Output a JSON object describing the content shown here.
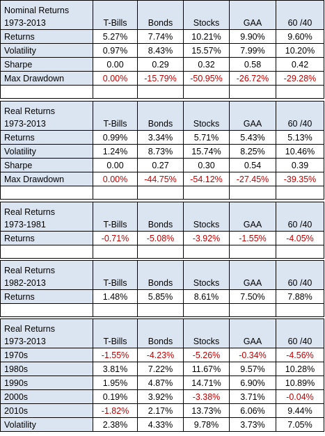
{
  "headers": [
    "T-Bills",
    "Bonds",
    "Stocks",
    "GAA",
    "60 /40"
  ],
  "blocks": [
    {
      "title": "Nominal Returns",
      "subtitle": "1973-2013",
      "rows": [
        {
          "label": "Returns",
          "values": [
            "5.27%",
            "7.74%",
            "10.21%",
            "9.90%",
            "9.60%"
          ],
          "neg": [
            false,
            false,
            false,
            false,
            false
          ]
        },
        {
          "label": "Volatility",
          "values": [
            "0.97%",
            "8.43%",
            "15.57%",
            "7.99%",
            "10.20%"
          ],
          "neg": [
            false,
            false,
            false,
            false,
            false
          ]
        },
        {
          "label": "Sharpe",
          "values": [
            "0.00",
            "0.29",
            "0.32",
            "0.58",
            "0.42"
          ],
          "neg": [
            false,
            false,
            false,
            false,
            false
          ]
        },
        {
          "label": "Max Drawdown",
          "values": [
            "0.00%",
            "-15.79%",
            "-50.95%",
            "-26.72%",
            "-29.28%"
          ],
          "neg": [
            true,
            true,
            true,
            true,
            true
          ]
        }
      ]
    },
    {
      "title": "Real Returns",
      "subtitle": "1973-2013",
      "rows": [
        {
          "label": "Returns",
          "values": [
            "0.99%",
            "3.34%",
            "5.71%",
            "5.43%",
            "5.13%"
          ],
          "neg": [
            false,
            false,
            false,
            false,
            false
          ]
        },
        {
          "label": "Volatility",
          "values": [
            "1.24%",
            "8.73%",
            "15.74%",
            "8.25%",
            "10.46%"
          ],
          "neg": [
            false,
            false,
            false,
            false,
            false
          ]
        },
        {
          "label": "Sharpe",
          "values": [
            "0.00",
            "0.27",
            "0.30",
            "0.54",
            "0.39"
          ],
          "neg": [
            false,
            false,
            false,
            false,
            false
          ]
        },
        {
          "label": "Max Drawdown",
          "values": [
            "0.00%",
            "-44.75%",
            "-54.12%",
            "-27.45%",
            "-39.35%"
          ],
          "neg": [
            true,
            true,
            true,
            true,
            true
          ]
        }
      ]
    },
    {
      "title": "Real Returns",
      "subtitle": "1973-1981",
      "rows": [
        {
          "label": "Returns",
          "values": [
            "-0.71%",
            "-5.08%",
            "-3.92%",
            "-1.55%",
            "-4.05%"
          ],
          "neg": [
            true,
            true,
            true,
            true,
            true
          ]
        }
      ]
    },
    {
      "title": "Real Returns",
      "subtitle": "1982-2013",
      "rows": [
        {
          "label": "Returns",
          "values": [
            "1.48%",
            "5.85%",
            "8.61%",
            "7.50%",
            "7.88%"
          ],
          "neg": [
            false,
            false,
            false,
            false,
            false
          ]
        }
      ]
    },
    {
      "title": "Real Returns",
      "subtitle": "1973-2013",
      "rows": [
        {
          "label": "1970s",
          "values": [
            "-1.55%",
            "-4.23%",
            "-5.26%",
            "-0.34%",
            "-4.56%"
          ],
          "neg": [
            true,
            true,
            true,
            true,
            true
          ]
        },
        {
          "label": "1980s",
          "values": [
            "3.81%",
            "7.22%",
            "11.67%",
            "9.57%",
            "10.28%"
          ],
          "neg": [
            false,
            false,
            false,
            false,
            false
          ]
        },
        {
          "label": "1990s",
          "values": [
            "1.95%",
            "4.87%",
            "14.71%",
            "6.90%",
            "10.89%"
          ],
          "neg": [
            false,
            false,
            false,
            false,
            false
          ]
        },
        {
          "label": "2000s",
          "values": [
            "0.19%",
            "3.92%",
            "-3.38%",
            "3.71%",
            "-0.04%"
          ],
          "neg": [
            false,
            false,
            true,
            false,
            true
          ]
        },
        {
          "label": "2010s",
          "values": [
            "-1.82%",
            "2.17%",
            "13.73%",
            "6.06%",
            "9.44%"
          ],
          "neg": [
            true,
            false,
            false,
            false,
            false
          ]
        },
        {
          "label": "Volatility",
          "values": [
            "2.38%",
            "4.33%",
            "9.78%",
            "3.73%",
            "7.05%"
          ],
          "neg": [
            false,
            false,
            false,
            false,
            false
          ]
        }
      ]
    }
  ]
}
